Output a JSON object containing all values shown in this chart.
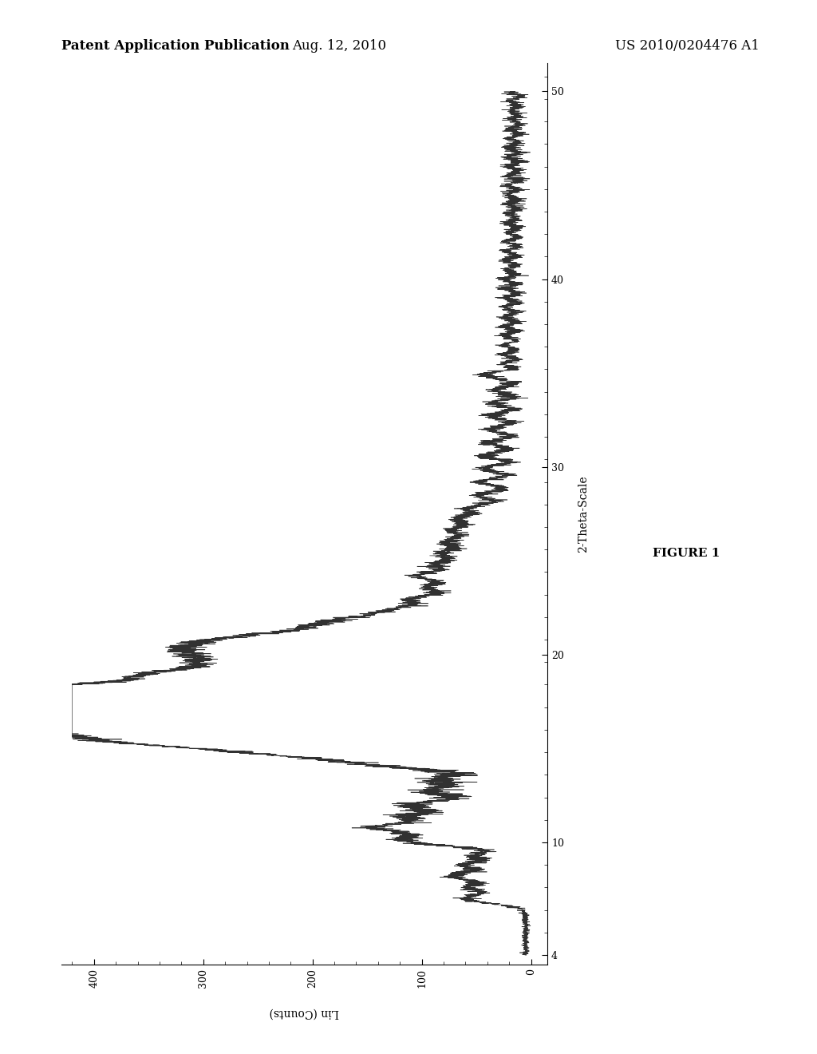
{
  "title_left": "Patent Application Publication",
  "title_center": "Aug. 12, 2010",
  "title_right": "US 2010/0204476 A1",
  "xlabel": "Lin (Counts)",
  "ylabel": "2-Theta-Scale",
  "figure_label": "FIGURE 1",
  "xlim_data": [
    0,
    430
  ],
  "ylim_data": [
    3.5,
    51.5
  ],
  "xticks": [
    0,
    100,
    200,
    300,
    400
  ],
  "yticks": [
    4,
    10,
    20,
    30,
    40,
    50
  ],
  "background_color": "#ffffff",
  "line_color": "#1a1a1a",
  "header_font_size": 12,
  "axis_label_font_size": 10,
  "tick_font_size": 9,
  "figure_label_font_size": 11
}
